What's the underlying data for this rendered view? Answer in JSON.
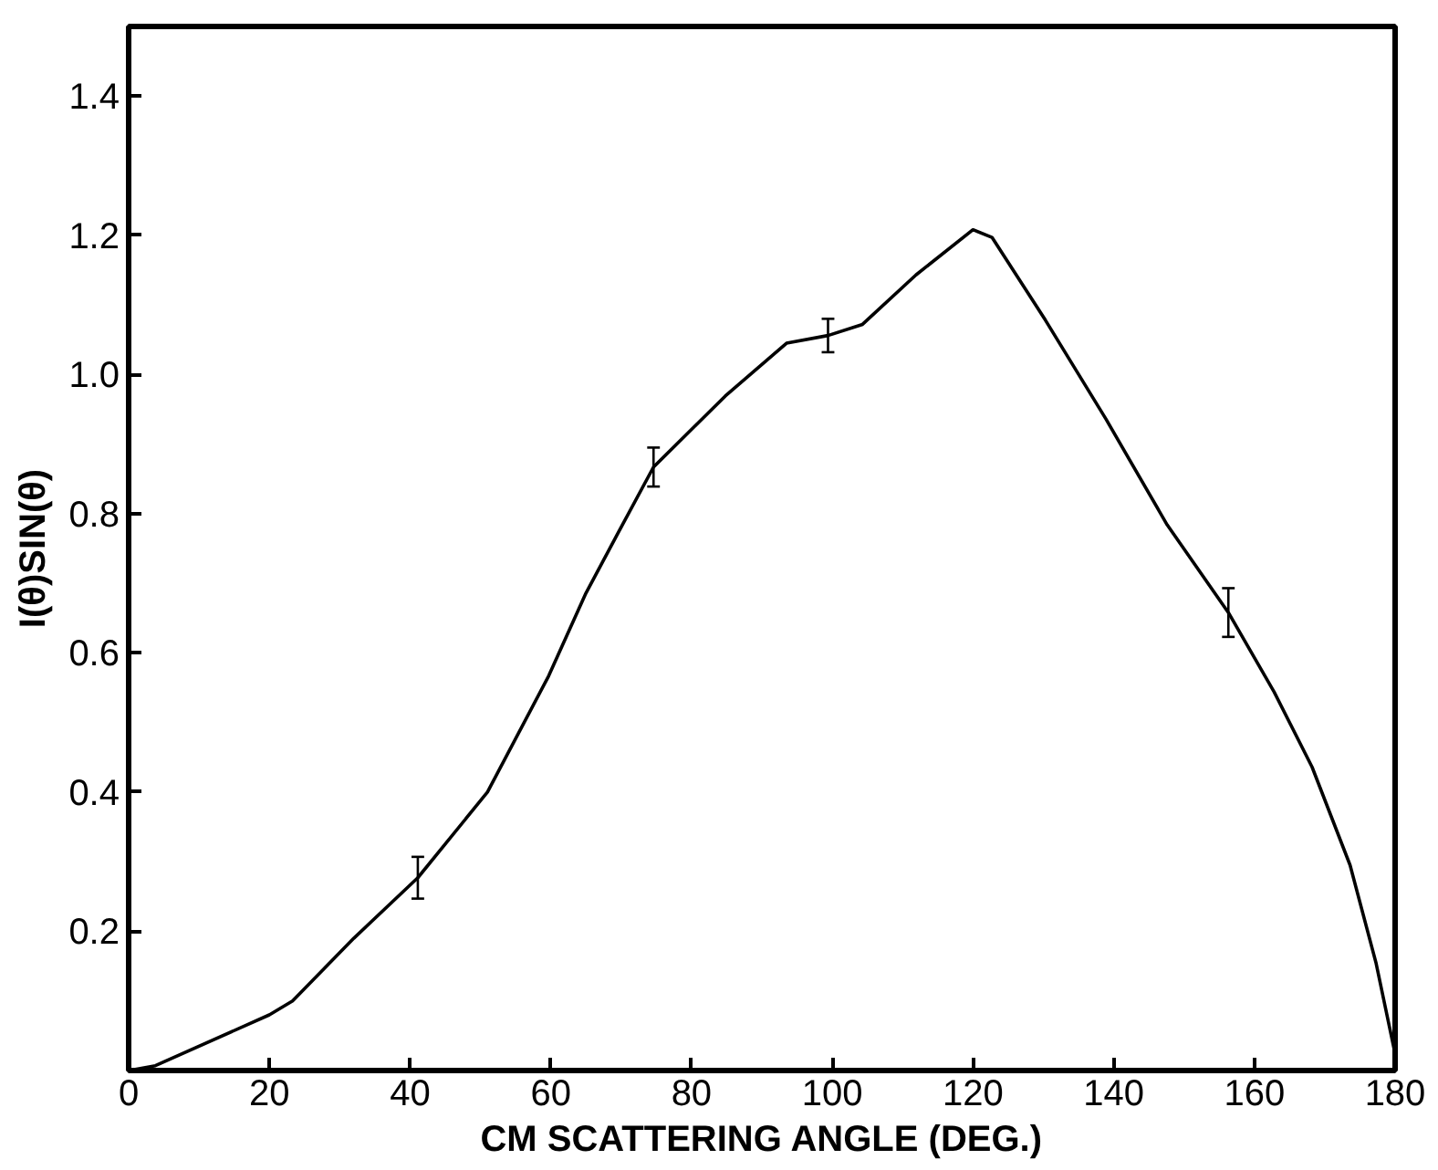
{
  "chart_data": {
    "type": "line",
    "xlabel": "CM SCATTERING ANGLE (DEG.)",
    "ylabel": "I(θ)SIN(θ)",
    "xlim": [
      0,
      180
    ],
    "ylim": [
      0,
      1.5
    ],
    "xticks": [
      0,
      20,
      40,
      60,
      80,
      100,
      120,
      140,
      160,
      180
    ],
    "yticks": [
      0.2,
      0.4,
      0.6,
      0.8,
      {
        "value": 1,
        "label": "1.0"
      },
      1.2,
      1.4
    ],
    "grid": false,
    "marker": "none",
    "line_style": "solid",
    "series": [
      {
        "color": "#000000",
        "x": [
          0,
          3.8,
          20,
          23.3,
          32,
          41.1,
          51,
          59.7,
          65,
          69.6,
          74.6,
          84.8,
          93.5,
          99.4,
          104.3,
          111.9,
          120,
          122.7,
          130.3,
          138.9,
          147.6,
          156.3,
          162.8,
          168.2,
          173.6,
          177.3,
          180
        ],
        "values": [
          0,
          0.007,
          0.08,
          0.1,
          0.19,
          0.277,
          0.4,
          0.567,
          0.686,
          0.773,
          0.867,
          0.969,
          1.045,
          1.056,
          1.072,
          1.143,
          1.208,
          1.197,
          1.078,
          0.936,
          0.784,
          0.658,
          0.544,
          0.436,
          0.295,
          0.154,
          0.024
        ],
        "errors": [
          null,
          null,
          null,
          null,
          null,
          0.03,
          null,
          null,
          null,
          null,
          0.028,
          null,
          null,
          0.024,
          null,
          null,
          null,
          null,
          null,
          null,
          null,
          0.035,
          null,
          null,
          null,
          null,
          null
        ]
      }
    ]
  }
}
